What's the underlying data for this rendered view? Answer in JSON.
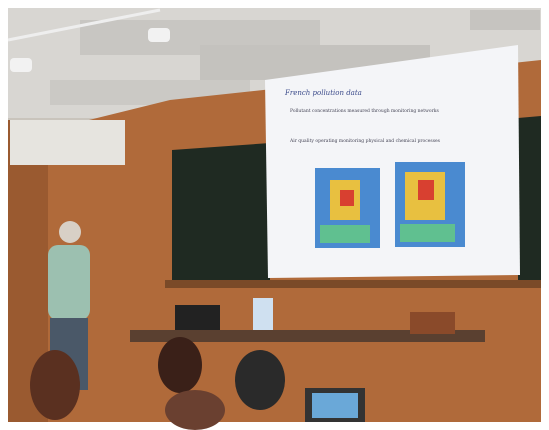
{
  "slide": {
    "title": "French pollution data",
    "bullets": [
      "Pollutant concentrations measured through monitoring networks",
      "Air quality operating monitoring physical and chemical processes"
    ]
  }
}
